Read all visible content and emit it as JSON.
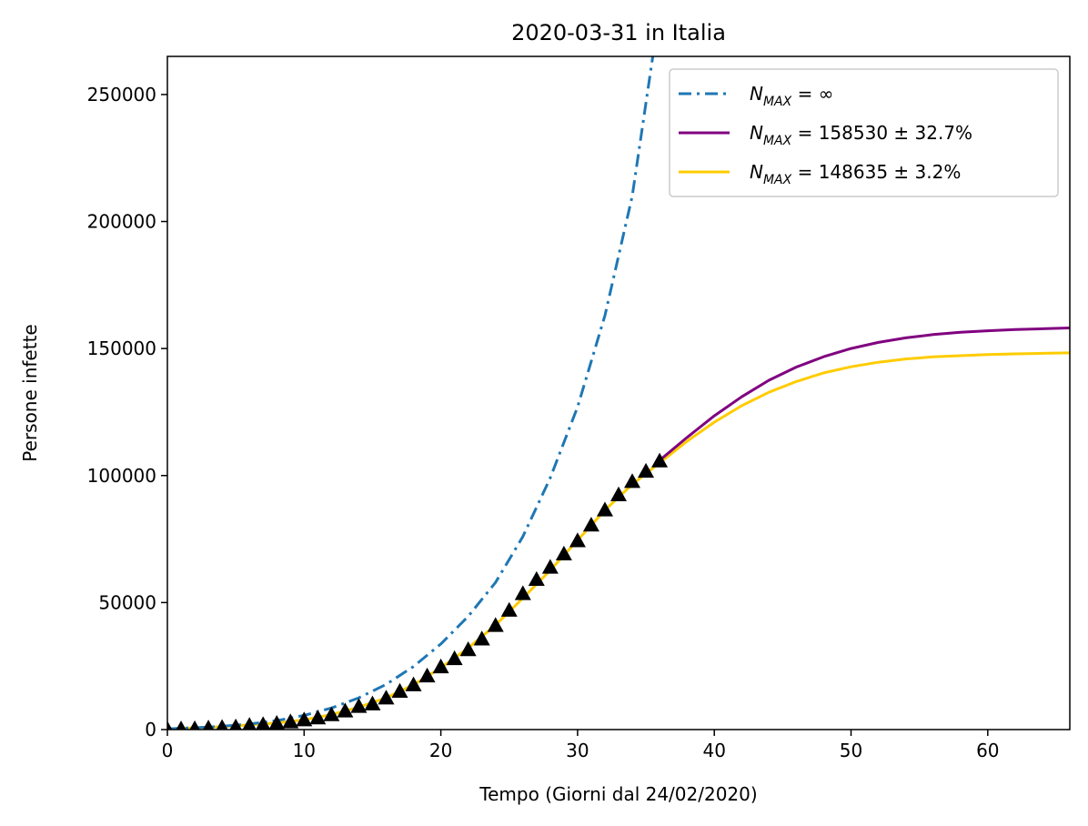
{
  "chart_data": {
    "type": "line",
    "title": "2020-03-31 in Italia",
    "xlabel": "Tempo (Giorni dal 24/02/2020)",
    "ylabel": "Persone infette",
    "xlim": [
      0,
      66
    ],
    "ylim": [
      0,
      265000
    ],
    "x_ticks": [
      "0",
      "10",
      "20",
      "30",
      "40",
      "50",
      "60"
    ],
    "y_ticks": [
      "0",
      "50000",
      "100000",
      "150000",
      "200000",
      "250000"
    ],
    "grid": false,
    "legend_position": "top-right",
    "series": [
      {
        "name_main": "N",
        "name_sub": "MAX",
        "name_rest": " = ∞",
        "style": "dashdot",
        "color": "#1f77b4",
        "x": [
          0,
          2,
          4,
          6,
          8,
          10,
          12,
          14,
          16,
          18,
          20,
          22,
          24,
          26,
          28,
          30,
          32,
          34,
          35.5
        ],
        "y": [
          300,
          700,
          1300,
          2200,
          3500,
          5600,
          8500,
          12500,
          17800,
          24800,
          33700,
          44600,
          57900,
          76000,
          99000,
          127000,
          163000,
          210000,
          265000
        ]
      },
      {
        "name_main": "N",
        "name_sub": "MAX",
        "name_rest": " = 158530 ± 32.7%",
        "style": "solid",
        "color": "#800080",
        "x": [
          36,
          38,
          40,
          42,
          44,
          46,
          48,
          50,
          52,
          54,
          56,
          58,
          60,
          62,
          64,
          66
        ],
        "y": [
          106000,
          115000,
          123500,
          131000,
          137500,
          142700,
          146800,
          150000,
          152400,
          154200,
          155500,
          156400,
          157000,
          157500,
          157800,
          158100
        ]
      },
      {
        "name_main": "N",
        "name_sub": "MAX",
        "name_rest": " = 148635 ± 3.2%",
        "style": "solid",
        "color": "#ffcc00",
        "x": [
          0,
          4,
          8,
          10,
          12,
          14,
          16,
          18,
          20,
          22,
          24,
          26,
          28,
          30,
          32,
          34,
          36,
          38,
          40,
          42,
          44,
          46,
          48,
          50,
          52,
          54,
          56,
          58,
          60,
          62,
          64,
          66
        ],
        "y": [
          300,
          1100,
          2600,
          3800,
          5900,
          8800,
          12500,
          17600,
          24300,
          32100,
          41100,
          51700,
          62700,
          74500,
          86400,
          96500,
          105000,
          113500,
          121000,
          127500,
          132800,
          137000,
          140400,
          142800,
          144600,
          145900,
          146700,
          147200,
          147600,
          147900,
          148100,
          148300
        ]
      }
    ],
    "observed": {
      "marker": "triangle",
      "color": "#000000",
      "x": [
        0,
        1,
        2,
        3,
        4,
        5,
        6,
        7,
        8,
        9,
        10,
        11,
        12,
        13,
        14,
        15,
        16,
        17,
        18,
        19,
        20,
        21,
        22,
        23,
        24,
        25,
        26,
        27,
        28,
        29,
        30,
        31,
        32,
        33,
        34,
        35,
        36
      ],
      "y": [
        229,
        322,
        400,
        650,
        888,
        1128,
        1694,
        2036,
        2502,
        3089,
        3858,
        4636,
        5883,
        7375,
        9172,
        10149,
        12462,
        15113,
        17660,
        21157,
        24747,
        27980,
        31506,
        35713,
        41035,
        47021,
        53578,
        59138,
        63927,
        69176,
        74386,
        80539,
        86498,
        92472,
        97689,
        101739,
        105792
      ]
    }
  }
}
